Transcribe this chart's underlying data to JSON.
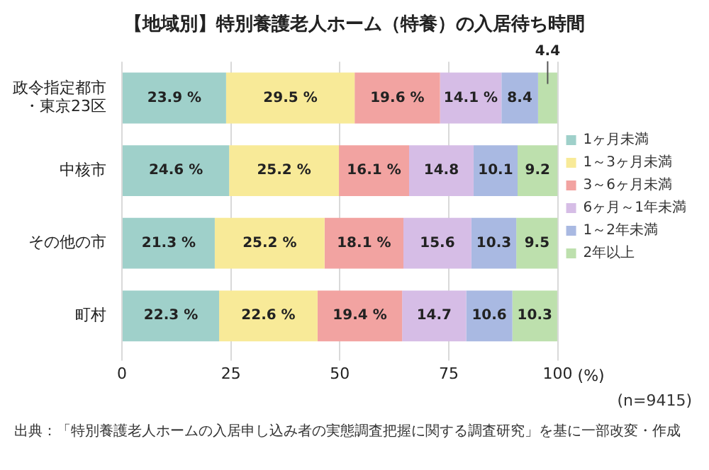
{
  "chart_data": {
    "type": "bar",
    "orientation": "horizontal",
    "stacked": true,
    "title": "【地域別】特別養護老人ホーム（特養）の入居待ち時間",
    "xlabel": "(%)",
    "categories": [
      "政令指定都市・東京23区",
      "中核市",
      "その他の市",
      "町村"
    ],
    "series": [
      {
        "name": "1ヶ月未満",
        "color": "#9fd0ca",
        "values": [
          23.9,
          24.6,
          21.3,
          22.3
        ],
        "value_labels": [
          "23.9 %",
          "24.6 %",
          "21.3 %",
          "22.3 %"
        ]
      },
      {
        "name": "1～3ヶ月未満",
        "color": "#f8ea98",
        "values": [
          29.5,
          25.2,
          25.2,
          22.6
        ],
        "value_labels": [
          "29.5 %",
          "25.2 %",
          "25.2 %",
          "22.6 %"
        ]
      },
      {
        "name": "3～6ヶ月未満",
        "color": "#f2a3a1",
        "values": [
          19.6,
          16.1,
          18.1,
          19.4
        ],
        "value_labels": [
          "19.6 %",
          "16.1 %",
          "18.1 %",
          "19.4 %"
        ]
      },
      {
        "name": "6ヶ月～1年未満",
        "color": "#d6bde6",
        "values": [
          14.1,
          14.8,
          15.6,
          14.7
        ],
        "value_labels": [
          "14.1 %",
          "14.8",
          "15.6",
          "14.7"
        ]
      },
      {
        "name": "1～2年未満",
        "color": "#a9b9e2",
        "values": [
          8.4,
          10.1,
          10.3,
          10.6
        ],
        "value_labels": [
          "8.4",
          "10.1",
          "10.3",
          "10.6"
        ]
      },
      {
        "name": "2年以上",
        "color": "#bde0ad",
        "values": [
          4.4,
          9.2,
          9.5,
          10.3
        ],
        "value_labels": [
          "4.4",
          "9.2",
          "9.5",
          "10.3"
        ]
      }
    ],
    "xlim": [
      0,
      100
    ],
    "xticks": [
      0,
      25,
      50,
      75,
      100
    ],
    "grid": "x",
    "legend": "right",
    "annotations": [
      "(n=9415)",
      "出典：「特別養護老人ホームの入居申し込み者の実態調査把握に関する調査研究」を基に一部改変・作成"
    ]
  }
}
